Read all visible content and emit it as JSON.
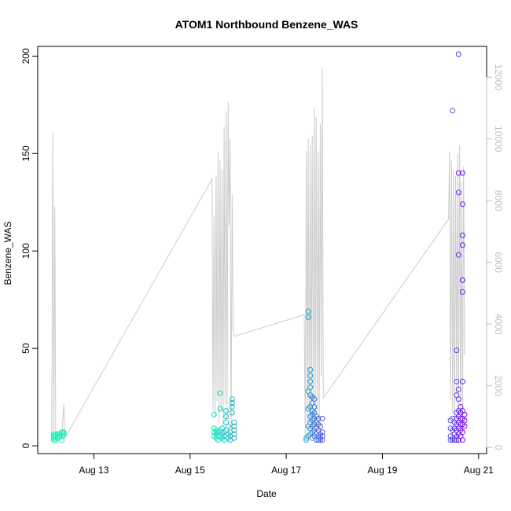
{
  "chart_data": {
    "type": "scatter",
    "title": "ATOM1 Northbound Benzene_WAS",
    "xlabel": "Date",
    "ylabel": "Benzene_WAS",
    "xlim": [
      "2016-08-11T20:00",
      "2016-08-21T04:00"
    ],
    "ylim": [
      -4,
      205
    ],
    "y2lim": [
      -200,
      13000
    ],
    "x_ticks": [
      "Aug 13",
      "Aug 15",
      "Aug 17",
      "Aug 19",
      "Aug 21"
    ],
    "x_tick_dates": [
      "2016-08-13",
      "2016-08-15",
      "2016-08-17",
      "2016-08-19",
      "2016-08-21"
    ],
    "y_ticks": [
      0,
      50,
      100,
      150,
      200
    ],
    "y2_ticks": [
      0,
      2000,
      4000,
      6000,
      8000,
      10000,
      12000
    ],
    "grid": false,
    "colors": {
      "color_start": "#00ffaa",
      "color_end": "#7e00ff",
      "secondary_line": "#cccccc",
      "secondary_axis": "#bfbfbf"
    },
    "series": [
      {
        "marker": "open-circle",
        "points": [
          [
            "2016-08-12T04:00",
            3
          ],
          [
            "2016-08-12T04:00",
            4
          ],
          [
            "2016-08-12T04:00",
            5
          ],
          [
            "2016-08-12T04:00",
            6
          ],
          [
            "2016-08-12T05:00",
            3
          ],
          [
            "2016-08-12T05:00",
            5
          ],
          [
            "2016-08-12T05:00",
            6
          ],
          [
            "2016-08-12T06:00",
            4
          ],
          [
            "2016-08-12T06:00",
            6
          ],
          [
            "2016-08-12T07:00",
            5
          ],
          [
            "2016-08-12T07:00",
            6
          ],
          [
            "2016-08-12T08:00",
            3
          ],
          [
            "2016-08-12T08:00",
            5
          ],
          [
            "2016-08-12T08:00",
            7
          ],
          [
            "2016-08-12T09:00",
            6
          ],
          [
            "2016-08-12T09:00",
            7
          ],
          [
            "2016-08-15T12:00",
            16
          ],
          [
            "2016-08-15T12:00",
            5
          ],
          [
            "2016-08-15T12:00",
            7
          ],
          [
            "2016-08-15T12:00",
            9
          ],
          [
            "2016-08-15T13:00",
            4
          ],
          [
            "2016-08-15T13:00",
            6
          ],
          [
            "2016-08-15T13:00",
            8
          ],
          [
            "2016-08-15T14:00",
            5
          ],
          [
            "2016-08-15T14:00",
            7
          ],
          [
            "2016-08-15T14:00",
            3
          ],
          [
            "2016-08-15T15:00",
            27
          ],
          [
            "2016-08-15T15:00",
            19
          ],
          [
            "2016-08-15T15:00",
            8
          ],
          [
            "2016-08-15T15:00",
            5
          ],
          [
            "2016-08-15T16:00",
            6
          ],
          [
            "2016-08-15T16:00",
            9
          ],
          [
            "2016-08-15T16:00",
            4
          ],
          [
            "2016-08-15T17:00",
            3
          ],
          [
            "2016-08-15T17:00",
            7
          ],
          [
            "2016-08-15T17:00",
            5
          ],
          [
            "2016-08-15T18:00",
            18
          ],
          [
            "2016-08-15T18:00",
            15
          ],
          [
            "2016-08-15T18:00",
            12
          ],
          [
            "2016-08-15T18:00",
            8
          ],
          [
            "2016-08-15T19:00",
            10
          ],
          [
            "2016-08-15T19:00",
            6
          ],
          [
            "2016-08-15T19:00",
            4
          ],
          [
            "2016-08-15T20:00",
            7
          ],
          [
            "2016-08-15T20:00",
            5
          ],
          [
            "2016-08-15T20:00",
            3
          ],
          [
            "2016-08-15T21:00",
            24
          ],
          [
            "2016-08-15T21:00",
            22
          ],
          [
            "2016-08-15T21:00",
            20
          ],
          [
            "2016-08-15T21:00",
            17
          ],
          [
            "2016-08-15T22:00",
            12
          ],
          [
            "2016-08-15T22:00",
            10
          ],
          [
            "2016-08-15T22:00",
            8
          ],
          [
            "2016-08-15T22:00",
            6
          ],
          [
            "2016-08-15T22:00",
            4
          ],
          [
            "2016-08-17T10:00",
            4
          ],
          [
            "2016-08-17T10:00",
            3
          ],
          [
            "2016-08-17T11:00",
            69
          ],
          [
            "2016-08-17T11:00",
            66
          ],
          [
            "2016-08-17T11:00",
            28
          ],
          [
            "2016-08-17T11:00",
            19
          ],
          [
            "2016-08-17T11:00",
            10
          ],
          [
            "2016-08-17T11:00",
            5
          ],
          [
            "2016-08-17T12:00",
            39
          ],
          [
            "2016-08-17T12:00",
            36
          ],
          [
            "2016-08-17T12:00",
            33
          ],
          [
            "2016-08-17T12:00",
            30
          ],
          [
            "2016-08-17T12:00",
            26
          ],
          [
            "2016-08-17T12:00",
            20
          ],
          [
            "2016-08-17T12:00",
            15
          ],
          [
            "2016-08-17T12:00",
            12
          ],
          [
            "2016-08-17T12:00",
            9
          ],
          [
            "2016-08-17T12:00",
            6
          ],
          [
            "2016-08-17T13:00",
            25
          ],
          [
            "2016-08-17T13:00",
            22
          ],
          [
            "2016-08-17T13:00",
            18
          ],
          [
            "2016-08-17T13:00",
            16
          ],
          [
            "2016-08-17T13:00",
            13
          ],
          [
            "2016-08-17T13:00",
            10
          ],
          [
            "2016-08-17T13:00",
            7
          ],
          [
            "2016-08-17T13:00",
            4
          ],
          [
            "2016-08-17T14:00",
            24
          ],
          [
            "2016-08-17T14:00",
            20
          ],
          [
            "2016-08-17T14:00",
            17
          ],
          [
            "2016-08-17T14:00",
            14
          ],
          [
            "2016-08-17T14:00",
            11
          ],
          [
            "2016-08-17T14:00",
            8
          ],
          [
            "2016-08-17T14:00",
            5
          ],
          [
            "2016-08-17T15:00",
            15
          ],
          [
            "2016-08-17T15:00",
            12
          ],
          [
            "2016-08-17T15:00",
            9
          ],
          [
            "2016-08-17T15:00",
            6
          ],
          [
            "2016-08-17T15:00",
            3
          ],
          [
            "2016-08-17T16:00",
            14
          ],
          [
            "2016-08-17T16:00",
            11
          ],
          [
            "2016-08-17T16:00",
            8
          ],
          [
            "2016-08-17T16:00",
            5
          ],
          [
            "2016-08-17T16:00",
            3
          ],
          [
            "2016-08-17T17:00",
            10
          ],
          [
            "2016-08-17T17:00",
            6
          ],
          [
            "2016-08-17T17:00",
            4
          ],
          [
            "2016-08-17T17:00",
            3
          ],
          [
            "2016-08-17T18:00",
            14
          ],
          [
            "2016-08-17T18:00",
            7
          ],
          [
            "2016-08-17T18:00",
            5
          ],
          [
            "2016-08-17T18:00",
            3
          ],
          [
            "2016-08-20T10:00",
            3
          ],
          [
            "2016-08-20T10:00",
            5
          ],
          [
            "2016-08-20T10:00",
            9
          ],
          [
            "2016-08-20T10:00",
            13
          ],
          [
            "2016-08-20T11:00",
            172
          ],
          [
            "2016-08-20T11:00",
            14
          ],
          [
            "2016-08-20T11:00",
            8
          ],
          [
            "2016-08-20T11:00",
            4
          ],
          [
            "2016-08-20T11:00",
            3
          ],
          [
            "2016-08-20T12:00",
            12
          ],
          [
            "2016-08-20T12:00",
            9
          ],
          [
            "2016-08-20T12:00",
            6
          ],
          [
            "2016-08-20T12:00",
            3
          ],
          [
            "2016-08-20T13:00",
            49
          ],
          [
            "2016-08-20T13:00",
            33
          ],
          [
            "2016-08-20T13:00",
            26
          ],
          [
            "2016-08-20T13:00",
            17
          ],
          [
            "2016-08-20T13:00",
            14
          ],
          [
            "2016-08-20T13:00",
            11
          ],
          [
            "2016-08-20T13:00",
            8
          ],
          [
            "2016-08-20T13:00",
            5
          ],
          [
            "2016-08-20T13:00",
            3
          ],
          [
            "2016-08-20T14:00",
            201
          ],
          [
            "2016-08-20T14:00",
            140
          ],
          [
            "2016-08-20T14:00",
            130
          ],
          [
            "2016-08-20T14:00",
            98
          ],
          [
            "2016-08-20T14:00",
            29
          ],
          [
            "2016-08-20T14:00",
            24
          ],
          [
            "2016-08-20T14:00",
            18
          ],
          [
            "2016-08-20T14:00",
            15
          ],
          [
            "2016-08-20T14:00",
            12
          ],
          [
            "2016-08-20T14:00",
            9
          ],
          [
            "2016-08-20T14:00",
            6
          ],
          [
            "2016-08-20T14:00",
            3
          ],
          [
            "2016-08-20T15:00",
            20
          ],
          [
            "2016-08-20T15:00",
            17
          ],
          [
            "2016-08-20T15:00",
            14
          ],
          [
            "2016-08-20T15:00",
            11
          ],
          [
            "2016-08-20T15:00",
            8
          ],
          [
            "2016-08-20T15:00",
            5
          ],
          [
            "2016-08-20T16:00",
            140
          ],
          [
            "2016-08-20T16:00",
            124
          ],
          [
            "2016-08-20T16:00",
            108
          ],
          [
            "2016-08-20T16:00",
            103
          ],
          [
            "2016-08-20T16:00",
            85
          ],
          [
            "2016-08-20T16:00",
            79
          ],
          [
            "2016-08-20T16:00",
            33
          ],
          [
            "2016-08-20T16:00",
            18
          ],
          [
            "2016-08-20T16:00",
            14
          ],
          [
            "2016-08-20T16:00",
            11
          ],
          [
            "2016-08-20T16:00",
            7
          ],
          [
            "2016-08-20T16:00",
            3
          ],
          [
            "2016-08-20T17:00",
            16
          ],
          [
            "2016-08-20T17:00",
            13
          ],
          [
            "2016-08-20T17:00",
            10
          ]
        ]
      },
      {
        "axis": "right",
        "type": "line",
        "points": [
          [
            "2016-08-12T03:00",
            200
          ],
          [
            "2016-08-12T03:30",
            10200
          ],
          [
            "2016-08-12T04:00",
            300
          ],
          [
            "2016-08-12T04:30",
            7800
          ],
          [
            "2016-08-12T05:00",
            400
          ],
          [
            "2016-08-12T06:00",
            200
          ],
          [
            "2016-08-12T07:00",
            500
          ],
          [
            "2016-08-12T08:00",
            300
          ],
          [
            "2016-08-12T09:00",
            1400
          ],
          [
            "2016-08-12T09:30",
            300
          ],
          [
            "2016-08-15T11:00",
            8700
          ],
          [
            "2016-08-15T11:30",
            1200
          ],
          [
            "2016-08-15T12:00",
            7500
          ],
          [
            "2016-08-15T12:30",
            1000
          ],
          [
            "2016-08-15T13:00",
            8800
          ],
          [
            "2016-08-15T13:30",
            1500
          ],
          [
            "2016-08-15T14:00",
            9600
          ],
          [
            "2016-08-15T14:30",
            800
          ],
          [
            "2016-08-15T15:00",
            9300
          ],
          [
            "2016-08-15T15:30",
            1200
          ],
          [
            "2016-08-15T16:00",
            9000
          ],
          [
            "2016-08-15T16:30",
            700
          ],
          [
            "2016-08-15T17:00",
            10400
          ],
          [
            "2016-08-15T17:30",
            1400
          ],
          [
            "2016-08-15T18:00",
            10900
          ],
          [
            "2016-08-15T18:30",
            900
          ],
          [
            "2016-08-15T19:00",
            11200
          ],
          [
            "2016-08-15T19:30",
            7200
          ],
          [
            "2016-08-15T20:00",
            10000
          ],
          [
            "2016-08-15T20:30",
            600
          ],
          [
            "2016-08-15T21:00",
            8200
          ],
          [
            "2016-08-15T21:30",
            3800
          ],
          [
            "2016-08-15T22:00",
            3600
          ],
          [
            "2016-08-17T09:00",
            4300
          ],
          [
            "2016-08-17T09:30",
            300
          ],
          [
            "2016-08-17T10:00",
            9600
          ],
          [
            "2016-08-17T10:30",
            500
          ],
          [
            "2016-08-17T11:00",
            10000
          ],
          [
            "2016-08-17T11:30",
            800
          ],
          [
            "2016-08-17T12:00",
            9800
          ],
          [
            "2016-08-17T12:30",
            600
          ],
          [
            "2016-08-17T13:00",
            10100
          ],
          [
            "2016-08-17T13:30",
            1000
          ],
          [
            "2016-08-17T14:00",
            11000
          ],
          [
            "2016-08-17T14:30",
            700
          ],
          [
            "2016-08-17T15:00",
            10700
          ],
          [
            "2016-08-17T15:30",
            1200
          ],
          [
            "2016-08-17T16:00",
            9600
          ],
          [
            "2016-08-17T16:30",
            500
          ],
          [
            "2016-08-17T17:00",
            10500
          ],
          [
            "2016-08-17T17:30",
            2300
          ],
          [
            "2016-08-17T18:00",
            12300
          ],
          [
            "2016-08-17T18:30",
            1600
          ],
          [
            "2016-08-20T09:00",
            7400
          ],
          [
            "2016-08-20T09:30",
            9600
          ],
          [
            "2016-08-20T10:00",
            1500
          ],
          [
            "2016-08-20T10:30",
            9300
          ],
          [
            "2016-08-20T11:00",
            1100
          ],
          [
            "2016-08-20T11:30",
            9000
          ],
          [
            "2016-08-20T12:00",
            500
          ],
          [
            "2016-08-20T12:30",
            8800
          ],
          [
            "2016-08-20T13:00",
            1700
          ],
          [
            "2016-08-20T13:30",
            9500
          ],
          [
            "2016-08-20T14:00",
            900
          ],
          [
            "2016-08-20T14:30",
            9800
          ],
          [
            "2016-08-20T15:00",
            1200
          ],
          [
            "2016-08-20T15:30",
            8600
          ],
          [
            "2016-08-20T16:00",
            600
          ],
          [
            "2016-08-20T16:30",
            9100
          ],
          [
            "2016-08-20T17:00",
            3000
          ]
        ]
      }
    ]
  }
}
